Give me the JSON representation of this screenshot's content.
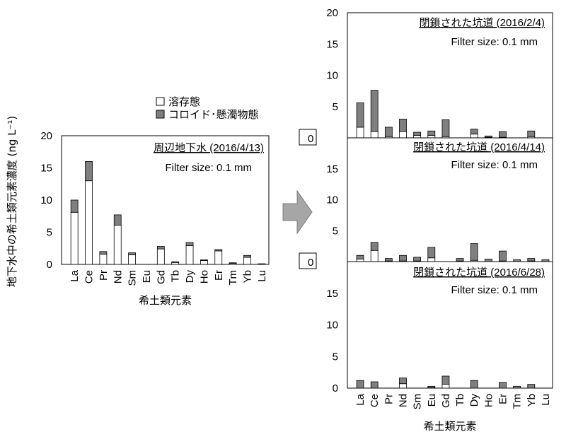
{
  "y_axis_title": "地下水中の希土類元素濃度 (ng L⁻¹)",
  "legend": {
    "items": [
      {
        "label": "溶存態",
        "color": "#ffffff"
      },
      {
        "label": "コロイド･懸濁物態",
        "color": "#7f7f7f"
      }
    ]
  },
  "arrow_color": "#a6a6a6",
  "colors": {
    "dissolved": "#ffffff",
    "colloid": "#7f7f7f",
    "axis": "#000000"
  },
  "chart_data": [
    {
      "type": "bar",
      "stacked": true,
      "annotation": "周辺地下水 (2016/4/13)",
      "filter_note": "Filter size: 0.1 mm",
      "xlabel": "希土類元素",
      "ylim": [
        0,
        20
      ],
      "yticks": [
        "0",
        "5",
        "10",
        "15",
        "20"
      ],
      "categories": [
        "La",
        "Ce",
        "Pr",
        "Nd",
        "Sm",
        "Eu",
        "Gd",
        "Tb",
        "Dy",
        "Ho",
        "Er",
        "Tm",
        "Yb",
        "Lu"
      ],
      "series": [
        {
          "name": "溶存態",
          "values": [
            8.1,
            13.0,
            1.6,
            6.1,
            1.5,
            0.0,
            2.4,
            0.3,
            2.9,
            0.6,
            2.1,
            0.15,
            1.1,
            0.05
          ]
        },
        {
          "name": "コロイド･懸濁物態",
          "values": [
            1.9,
            3.0,
            0.4,
            1.6,
            0.3,
            0.0,
            0.4,
            0.1,
            0.5,
            0.1,
            0.2,
            0.1,
            0.3,
            0.05
          ]
        }
      ]
    },
    {
      "type": "bar",
      "stacked": true,
      "annotation": "閉鎖された坑道 (2016/2/4)",
      "filter_note": "Filter size: 0.1 mm",
      "xlabel": "",
      "ylim": [
        0,
        20
      ],
      "yticks": [
        "0",
        "5",
        "10",
        "15",
        "20"
      ],
      "categories": [
        "La",
        "Ce",
        "Pr",
        "Nd",
        "Sm",
        "Eu",
        "Gd",
        "Tb",
        "Dy",
        "Ho",
        "Er",
        "Tm",
        "Yb",
        "Lu"
      ],
      "series": [
        {
          "name": "溶存態",
          "values": [
            1.7,
            1.0,
            0.2,
            1.0,
            0.4,
            0.4,
            0.2,
            0.0,
            0.6,
            0.1,
            0.1,
            0.0,
            0.2,
            0.0
          ]
        },
        {
          "name": "コロイド･懸濁物態",
          "values": [
            3.9,
            6.6,
            1.5,
            2.0,
            0.5,
            0.7,
            2.7,
            0.0,
            0.8,
            0.2,
            0.9,
            0.0,
            0.9,
            0.0
          ]
        }
      ]
    },
    {
      "type": "bar",
      "stacked": true,
      "annotation": "閉鎖された坑道 (2016/4/14)",
      "filter_note": "Filter size: 0.1 mm",
      "xlabel": "",
      "ylim": [
        0,
        20
      ],
      "yticks": [
        "0",
        "5",
        "10",
        "15"
      ],
      "categories": [
        "La",
        "Ce",
        "Pr",
        "Nd",
        "Sm",
        "Eu",
        "Gd",
        "Tb",
        "Dy",
        "Ho",
        "Er",
        "Tm",
        "Yb",
        "Lu"
      ],
      "series": [
        {
          "name": "溶存態",
          "values": [
            0.4,
            1.8,
            0.1,
            0.1,
            0.1,
            0.6,
            0.0,
            0.1,
            0.2,
            0.0,
            0.1,
            0.0,
            0.1,
            0.0
          ]
        },
        {
          "name": "コロイド･懸濁物態",
          "values": [
            0.6,
            1.3,
            0.4,
            0.9,
            0.6,
            1.7,
            0.0,
            0.4,
            2.7,
            0.4,
            1.6,
            0.3,
            0.4,
            0.3
          ]
        }
      ]
    },
    {
      "type": "bar",
      "stacked": true,
      "annotation": "閉鎖された坑道 (2016/6/28)",
      "filter_note": "Filter size: 0.1 mm",
      "xlabel": "希土類元素",
      "ylim": [
        0,
        20
      ],
      "yticks": [
        "0",
        "5",
        "10",
        "15"
      ],
      "categories": [
        "La",
        "Ce",
        "Pr",
        "Nd",
        "Sm",
        "Eu",
        "Gd",
        "Tb",
        "Dy",
        "Ho",
        "Er",
        "Tm",
        "Yb",
        "Lu"
      ],
      "series": [
        {
          "name": "溶存態",
          "values": [
            0.0,
            0.0,
            0.0,
            0.7,
            0.0,
            0.1,
            0.6,
            0.0,
            0.0,
            0.0,
            0.0,
            0.0,
            0.0,
            0.0
          ]
        },
        {
          "name": "コロイド･懸濁物態",
          "values": [
            1.2,
            1.0,
            0.0,
            0.9,
            0.0,
            0.2,
            1.3,
            0.0,
            1.2,
            0.0,
            0.9,
            0.3,
            0.6,
            0.0
          ]
        }
      ]
    }
  ]
}
